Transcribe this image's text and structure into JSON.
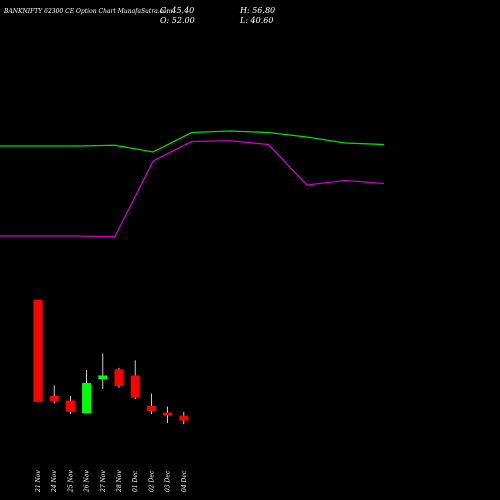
{
  "header": {
    "title": "BANKNIFTY 62300  CE Option  Chart MunafaSutra.com",
    "c_label": "C: 45.40",
    "o_label": "O: 52.00",
    "h_label": "H: 56.80",
    "l_label": "L: 40.60"
  },
  "colors": {
    "background": "#000000",
    "up": "#00ff00",
    "down": "#ff0000",
    "line_green": "#00dd00",
    "line_magenta": "#cc00cc",
    "wick": "#ffffff",
    "text": "#ffffff"
  },
  "chart_data": {
    "type": "candlestick",
    "title": "BANKNIFTY 62300  CE Option  Chart MunafaSutra.com",
    "categories": [
      "21 Nov",
      "24 Nov",
      "25 Nov",
      "26 Nov",
      "27 Nov",
      "28 Nov",
      "01 Dec",
      "02 Dec",
      "03 Dec",
      "04 Dec"
    ],
    "ohlc": [
      {
        "open": 205.0,
        "high": 205.0,
        "low": 70.0,
        "close": 70.0
      },
      {
        "open": 78.0,
        "high": 92.0,
        "low": 68.0,
        "close": 71.0
      },
      {
        "open": 72.0,
        "high": 78.0,
        "low": 54.0,
        "close": 57.0
      },
      {
        "open": 55.0,
        "high": 112.0,
        "low": 55.0,
        "close": 95.0
      },
      {
        "open": 100.0,
        "high": 134.0,
        "low": 87.0,
        "close": 105.0
      },
      {
        "open": 113.0,
        "high": 115.0,
        "low": 89.0,
        "close": 91.0
      },
      {
        "open": 105.0,
        "high": 125.0,
        "low": 74.0,
        "close": 76.0
      },
      {
        "open": 65.0,
        "high": 81.0,
        "low": 54.0,
        "close": 58.0
      },
      {
        "open": 56.0,
        "high": 64.0,
        "low": 42.0,
        "close": 52.0
      },
      {
        "open": 52.0,
        "high": 56.8,
        "low": 40.6,
        "close": 45.4
      }
    ],
    "ylim": [
      0,
      264
    ],
    "lines": [
      {
        "color": "green",
        "x": [
          0,
          1,
          2,
          3,
          4,
          5,
          6,
          7,
          8,
          9
        ],
        "y": [
          0.76,
          0.76,
          0.765,
          0.72,
          0.85,
          0.86,
          0.85,
          0.82,
          0.78,
          0.77
        ]
      },
      {
        "color": "magenta",
        "x": [
          0,
          1,
          2,
          3,
          4,
          5,
          6,
          7,
          8,
          9
        ],
        "y": [
          0.16,
          0.16,
          0.155,
          0.66,
          0.79,
          0.795,
          0.77,
          0.5,
          0.53,
          0.51
        ]
      }
    ]
  }
}
